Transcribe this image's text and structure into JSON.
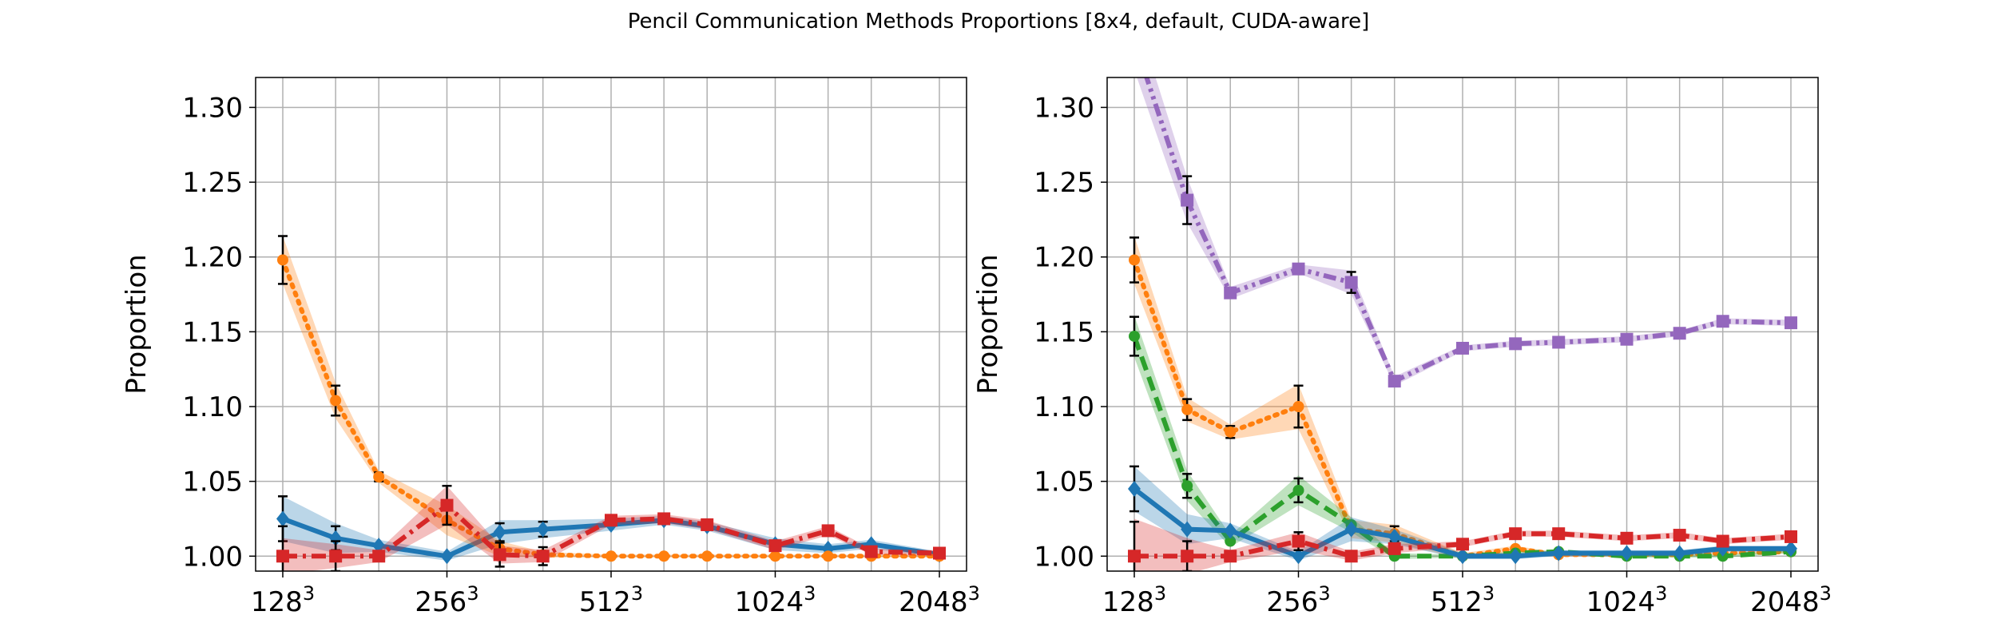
{
  "figure": {
    "title": "Pencil Communication Methods Proportions [8x4, default, CUDA-aware]"
  },
  "colors": {
    "blue": "#1f77b4",
    "orange": "#ff7f0e",
    "green": "#2ca02c",
    "red": "#d62728",
    "purple": "#9467bd",
    "grid": "#b0b0b0",
    "errorbar": "#000000"
  },
  "chart_data": [
    {
      "type": "line",
      "title": "",
      "xlabel": "",
      "ylabel": "Proportion",
      "ylim": [
        0.99,
        1.32
      ],
      "yticks": [
        1.0,
        1.05,
        1.1,
        1.15,
        1.2,
        1.25,
        1.3
      ],
      "ytick_labels": [
        "1.00",
        "1.05",
        "1.10",
        "1.15",
        "1.20",
        "1.25",
        "1.30"
      ],
      "x_scale": "log2",
      "x_positions": [
        128,
        160,
        192,
        256,
        320,
        384,
        512,
        640,
        768,
        1024,
        1280,
        1536,
        2048
      ],
      "xticks": [
        128,
        256,
        512,
        1024,
        2048
      ],
      "xtick_labels": [
        "128",
        "256",
        "512",
        "1024",
        "2048"
      ],
      "xtick_exponent": "3",
      "grid": true,
      "series": [
        {
          "color": "blue",
          "line": "solid",
          "marker": "diamond",
          "band": true,
          "values": [
            1.025,
            1.012,
            1.007,
            1.0,
            1.016,
            1.018,
            1.021,
            1.024,
            1.02,
            1.008,
            1.005,
            1.008,
            1.001
          ],
          "errors": [
            0.015,
            0.008,
            0,
            0,
            0.006,
            0.005,
            0,
            0,
            0,
            0,
            0,
            0,
            0
          ],
          "band_width": [
            0.015,
            0.01,
            0.004,
            0.003,
            0.008,
            0.006,
            0.004,
            0.003,
            0.003,
            0.004,
            0.003,
            0.003,
            0.002
          ]
        },
        {
          "color": "orange",
          "line": "dotted",
          "marker": "circle",
          "band": true,
          "values": [
            1.198,
            1.104,
            1.053,
            1.024,
            1.005,
            1.001,
            1.0,
            1.0,
            1.0,
            1.0,
            1.0,
            1.0,
            1.0
          ],
          "errors": [
            0.016,
            0.01,
            0.003,
            0,
            0,
            0,
            0,
            0,
            0,
            0,
            0,
            0,
            0
          ],
          "band_width": [
            0.016,
            0.012,
            0.004,
            0.01,
            0.005,
            0.002,
            0.001,
            0.001,
            0.001,
            0.001,
            0.001,
            0.001,
            0.001
          ]
        },
        {
          "color": "red",
          "line": "dashdot",
          "marker": "square",
          "band": true,
          "values": [
            1.0,
            1.0,
            1.0,
            1.034,
            1.001,
            1.0,
            1.024,
            1.025,
            1.021,
            1.007,
            1.017,
            1.003,
            1.002
          ],
          "errors": [
            0.02,
            0.01,
            0,
            0.013,
            0.008,
            0.006,
            0,
            0,
            0,
            0,
            0,
            0,
            0
          ],
          "band_width": [
            0.012,
            0.008,
            0.004,
            0.013,
            0.006,
            0.004,
            0.003,
            0.003,
            0.003,
            0.003,
            0.003,
            0.002,
            0.002
          ]
        }
      ]
    },
    {
      "type": "line",
      "title": "",
      "xlabel": "",
      "ylabel": "Proportion",
      "ylim": [
        0.99,
        1.32
      ],
      "yticks": [
        1.0,
        1.05,
        1.1,
        1.15,
        1.2,
        1.25,
        1.3
      ],
      "ytick_labels": [
        "1.00",
        "1.05",
        "1.10",
        "1.15",
        "1.20",
        "1.25",
        "1.30"
      ],
      "x_scale": "log2",
      "x_positions": [
        128,
        160,
        192,
        256,
        320,
        384,
        512,
        640,
        768,
        1024,
        1280,
        1536,
        2048
      ],
      "xticks": [
        128,
        256,
        512,
        1024,
        2048
      ],
      "xtick_labels": [
        "128",
        "256",
        "512",
        "1024",
        "2048"
      ],
      "xtick_exponent": "3",
      "grid": true,
      "series": [
        {
          "color": "purple",
          "line": "dashdotdot",
          "marker": "square",
          "band": true,
          "values": [
            1.345,
            1.238,
            1.176,
            1.192,
            1.183,
            1.117,
            1.139,
            1.142,
            1.143,
            1.145,
            1.149,
            1.157,
            1.156
          ],
          "errors": [
            0,
            0.016,
            0.003,
            0.002,
            0.007,
            0.002,
            0.002,
            0.003,
            0.002,
            0.002,
            0.002,
            0.002,
            0.003
          ],
          "band_width": [
            0.02,
            0.015,
            0.004,
            0.003,
            0.008,
            0.003,
            0.002,
            0.002,
            0.002,
            0.002,
            0.002,
            0.002,
            0.002
          ]
        },
        {
          "color": "orange",
          "line": "dotted",
          "marker": "circle",
          "band": true,
          "values": [
            1.198,
            1.098,
            1.083,
            1.1,
            1.018,
            1.015,
            1.0,
            1.005,
            1.001,
            1.001,
            1.001,
            1.002,
            1.003
          ],
          "errors": [
            0.015,
            0.007,
            0.004,
            0.014,
            0,
            0.005,
            0,
            0,
            0,
            0,
            0,
            0,
            0
          ],
          "band_width": [
            0.016,
            0.008,
            0.005,
            0.015,
            0.006,
            0.006,
            0.002,
            0.002,
            0.001,
            0.001,
            0.001,
            0.001,
            0.001
          ]
        },
        {
          "color": "green",
          "line": "dashed",
          "marker": "circle",
          "band": true,
          "values": [
            1.147,
            1.047,
            1.01,
            1.044,
            1.021,
            1.0,
            1.0,
            1.002,
            1.003,
            1.0,
            1.0,
            1.0,
            1.003
          ],
          "errors": [
            0.013,
            0.008,
            0,
            0.008,
            0,
            0,
            0,
            0,
            0,
            0,
            0,
            0,
            0
          ],
          "band_width": [
            0.014,
            0.01,
            0.004,
            0.01,
            0.005,
            0.002,
            0.001,
            0.001,
            0.001,
            0.001,
            0.001,
            0.001,
            0.001
          ]
        },
        {
          "color": "blue",
          "line": "solid",
          "marker": "diamond",
          "band": true,
          "values": [
            1.045,
            1.018,
            1.017,
            1.0,
            1.018,
            1.013,
            1.0,
            1.0,
            1.002,
            1.002,
            1.002,
            1.005,
            1.005
          ],
          "errors": [
            0.015,
            0,
            0,
            0,
            0,
            0,
            0,
            0,
            0,
            0,
            0,
            0,
            0
          ],
          "band_width": [
            0.015,
            0.01,
            0.005,
            0.003,
            0.008,
            0.005,
            0.002,
            0.002,
            0.002,
            0.002,
            0.002,
            0.002,
            0.002
          ]
        },
        {
          "color": "red",
          "line": "dashdot",
          "marker": "square",
          "band": true,
          "values": [
            1.0,
            1.0,
            1.0,
            1.01,
            1.0,
            1.005,
            1.008,
            1.015,
            1.015,
            1.012,
            1.014,
            1.01,
            1.013
          ],
          "errors": [
            0.023,
            0.01,
            0,
            0.006,
            0,
            0,
            0,
            0,
            0,
            0,
            0,
            0,
            0
          ],
          "band_width": [
            0.025,
            0.012,
            0.004,
            0.006,
            0.003,
            0.003,
            0.002,
            0.002,
            0.002,
            0.002,
            0.002,
            0.002,
            0.002
          ]
        }
      ]
    }
  ]
}
